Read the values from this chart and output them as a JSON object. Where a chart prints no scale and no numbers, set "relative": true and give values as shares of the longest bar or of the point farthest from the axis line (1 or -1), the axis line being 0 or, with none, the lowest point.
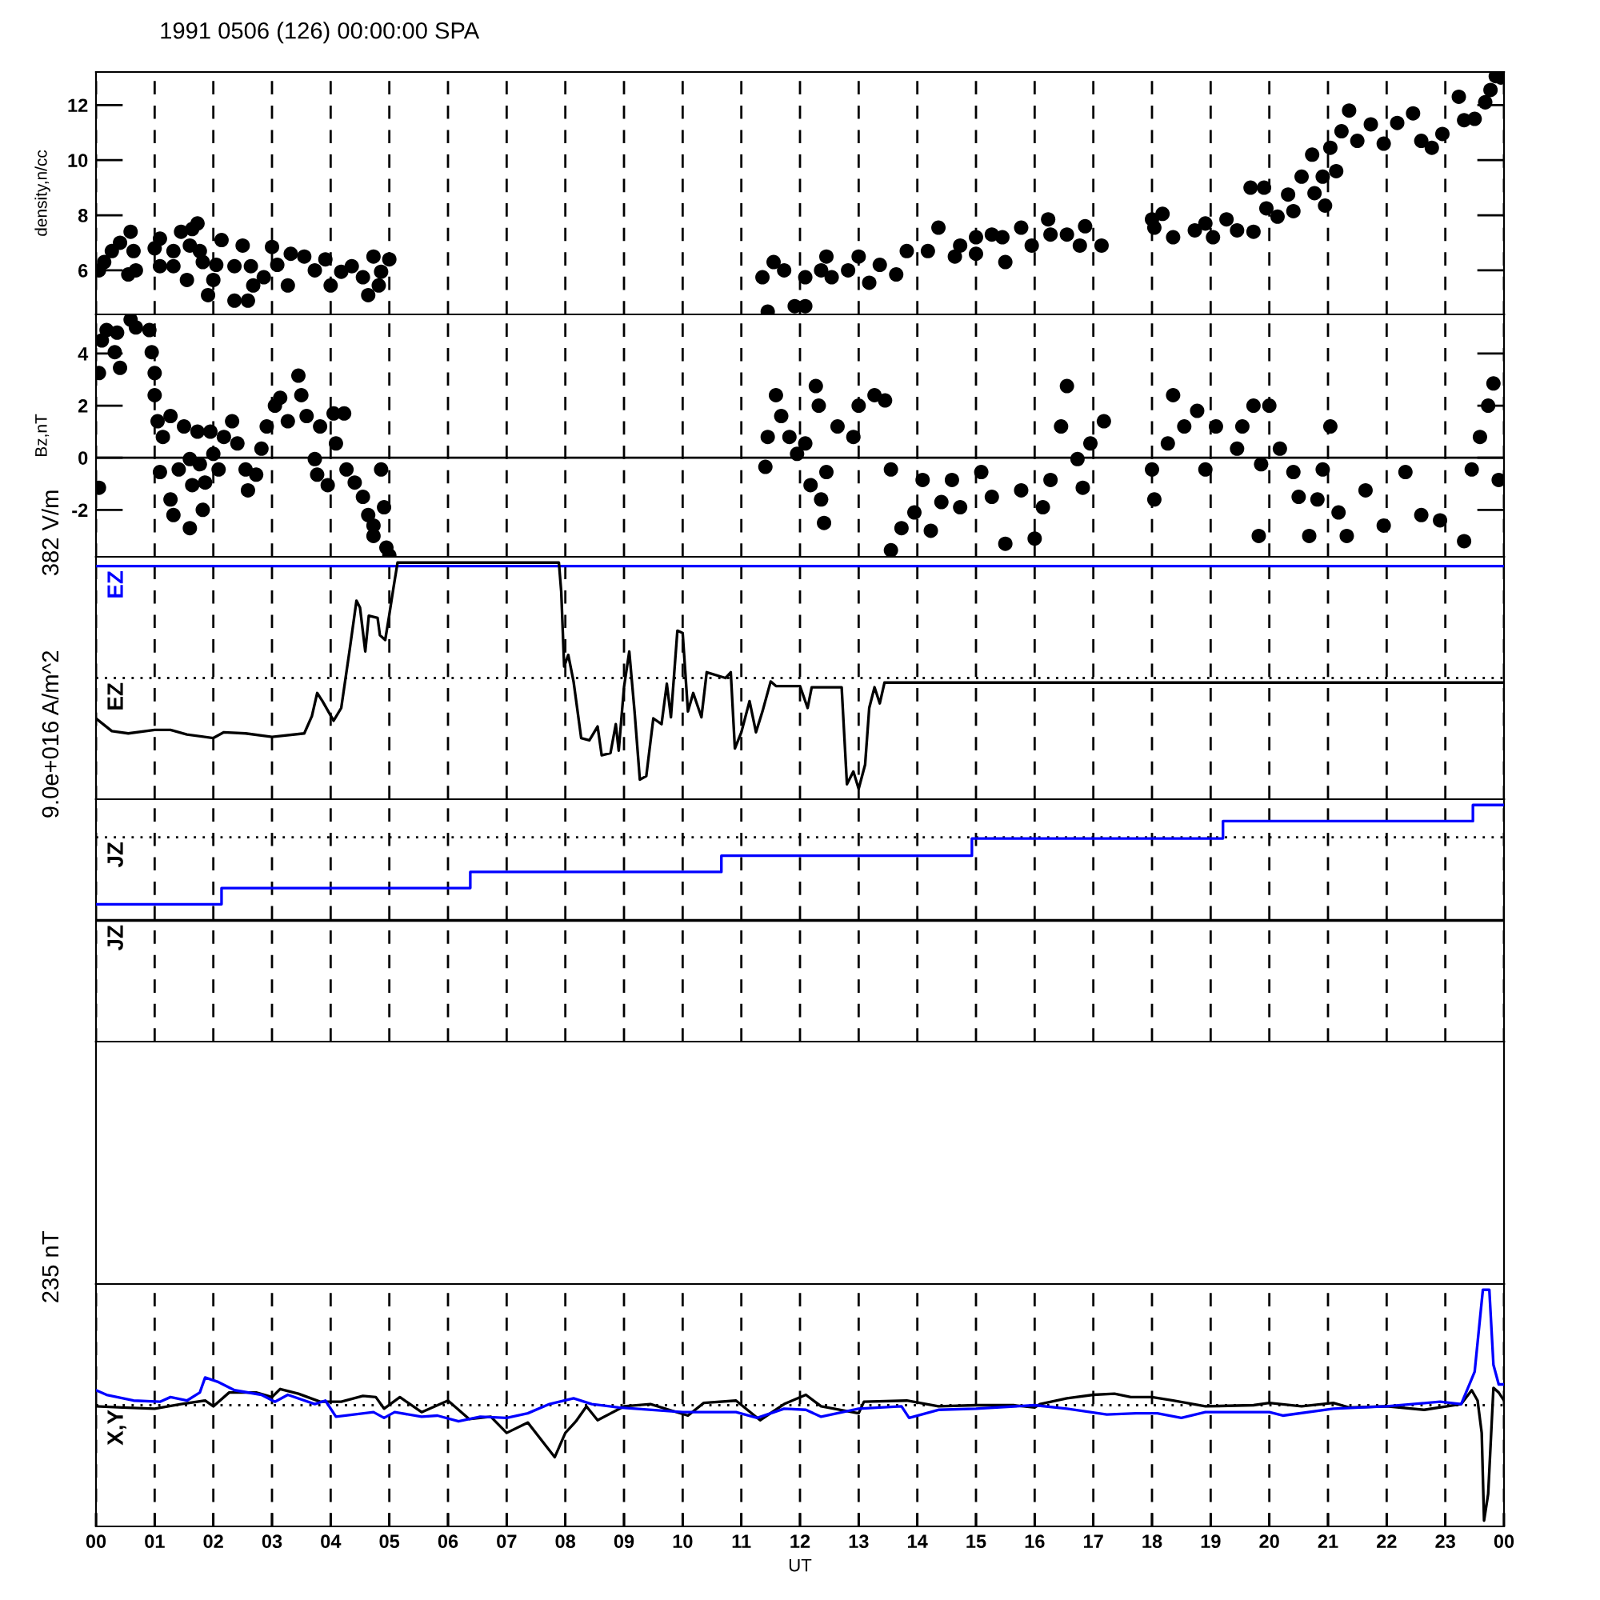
{
  "chart_data": [
    {
      "type": "scatter",
      "title": "1991 0506 (126) 00:00:00 SPA",
      "ylabel": "density,n/cc",
      "marker": "circle",
      "grid": "x",
      "tick_labels": "y",
      "xlim": [
        0,
        24
      ],
      "xticks": [
        {
          "value": 0,
          "label": null
        },
        {
          "value": 1,
          "label": null
        },
        {
          "value": 2,
          "label": null
        },
        {
          "value": 3,
          "label": null
        },
        {
          "value": 4,
          "label": null
        },
        {
          "value": 5,
          "label": null
        },
        {
          "value": 6,
          "label": null
        },
        {
          "value": 7,
          "label": null
        },
        {
          "value": 8,
          "label": null
        },
        {
          "value": 9,
          "label": null
        },
        {
          "value": 10,
          "label": null
        },
        {
          "value": 11,
          "label": null
        },
        {
          "value": 12,
          "label": null
        },
        {
          "value": 13,
          "label": null
        },
        {
          "value": 14,
          "label": null
        },
        {
          "value": 15,
          "label": null
        },
        {
          "value": 16,
          "label": null
        },
        {
          "value": 17,
          "label": null
        },
        {
          "value": 18,
          "label": null
        },
        {
          "value": 19,
          "label": null
        },
        {
          "value": 20,
          "label": null
        },
        {
          "value": 21,
          "label": null
        },
        {
          "value": 22,
          "label": null
        },
        {
          "value": 23,
          "label": null
        },
        {
          "value": 24,
          "label": null
        }
      ],
      "ylim": [
        4.4,
        13.2
      ],
      "yticks": [
        6,
        8,
        10,
        12
      ],
      "series": [
        {
          "color": "#000000",
          "x": [
            0.05,
            0.14,
            0.27,
            0.41,
            0.59,
            0.55,
            0.68,
            0.64,
            1.0,
            1.09,
            1.09,
            1.32,
            1.32,
            1.45,
            1.55,
            1.6,
            1.64,
            1.73,
            1.77,
            1.82,
            1.91,
            2.0,
            2.05,
            2.14,
            2.36,
            2.36,
            2.5,
            2.59,
            2.64,
            2.68,
            2.86,
            3.0,
            3.09,
            3.27,
            3.32,
            3.55,
            3.73,
            3.91,
            4.0,
            4.18,
            4.36,
            4.55,
            4.64,
            4.73,
            4.86,
            4.82,
            5.0,
            11.36,
            11.55,
            11.45,
            11.73,
            11.91,
            12.09,
            12.09,
            12.36,
            12.54,
            12.45,
            12.82,
            13.0,
            13.18,
            13.36,
            13.64,
            13.82,
            14.18,
            14.36,
            14.64,
            14.73,
            15.0,
            15.0,
            15.27,
            15.5,
            15.45,
            15.77,
            15.95,
            16.23,
            16.27,
            16.55,
            16.77,
            16.86,
            17.14,
            18.0,
            18.18,
            18.04,
            18.36,
            18.73,
            18.91,
            19.04,
            19.27,
            19.45,
            19.68,
            19.73,
            19.91,
            19.95,
            20.14,
            20.32,
            20.41,
            20.55,
            20.73,
            20.77,
            20.95,
            20.91,
            21.04,
            21.14,
            21.23,
            21.36,
            21.5,
            21.73,
            21.95,
            22.18,
            22.45,
            22.59,
            22.77,
            22.95,
            23.23,
            23.32,
            23.5,
            23.68,
            23.77,
            23.86,
            23.95
          ],
          "values": [
            6.0,
            6.3,
            6.7,
            7.0,
            7.4,
            5.85,
            6.0,
            6.7,
            6.8,
            7.15,
            6.15,
            6.15,
            6.7,
            7.4,
            5.65,
            6.9,
            7.5,
            7.7,
            6.7,
            6.3,
            5.1,
            5.65,
            6.2,
            7.1,
            4.9,
            6.15,
            6.9,
            4.9,
            6.15,
            5.45,
            5.75,
            6.85,
            6.2,
            5.45,
            6.6,
            6.5,
            6.0,
            6.4,
            5.45,
            5.95,
            6.15,
            5.75,
            5.1,
            6.5,
            5.95,
            5.45,
            6.4,
            5.75,
            6.3,
            4.5,
            6.0,
            4.7,
            5.75,
            4.7,
            6.0,
            5.75,
            6.5,
            6.0,
            6.5,
            5.55,
            6.2,
            5.85,
            6.7,
            6.7,
            7.55,
            6.5,
            6.9,
            6.6,
            7.2,
            7.3,
            6.3,
            7.2,
            7.55,
            6.9,
            7.85,
            7.3,
            7.3,
            6.9,
            7.6,
            6.9,
            7.85,
            8.05,
            7.55,
            7.2,
            7.45,
            7.7,
            7.2,
            7.85,
            7.45,
            9.0,
            7.4,
            9.0,
            8.25,
            7.95,
            8.75,
            8.15,
            9.4,
            10.2,
            8.8,
            8.35,
            9.4,
            10.45,
            9.6,
            11.05,
            11.8,
            10.7,
            11.3,
            10.6,
            11.35,
            11.7,
            10.7,
            10.45,
            10.95,
            12.3,
            11.45,
            11.5,
            12.1,
            12.55,
            13.05,
            13.0
          ]
        }
      ]
    },
    {
      "type": "scatter",
      "ylabel": "Bz,nT",
      "marker": "circle",
      "grid": "x",
      "tick_labels": "y",
      "xlim": [
        0,
        24
      ],
      "xticks": [
        {
          "value": 0,
          "label": null
        },
        {
          "value": 1,
          "label": null
        },
        {
          "value": 2,
          "label": null
        },
        {
          "value": 3,
          "label": null
        },
        {
          "value": 4,
          "label": null
        },
        {
          "value": 5,
          "label": null
        },
        {
          "value": 6,
          "label": null
        },
        {
          "value": 7,
          "label": null
        },
        {
          "value": 8,
          "label": null
        },
        {
          "value": 9,
          "label": null
        },
        {
          "value": 10,
          "label": null
        },
        {
          "value": 11,
          "label": null
        },
        {
          "value": 12,
          "label": null
        },
        {
          "value": 13,
          "label": null
        },
        {
          "value": 14,
          "label": null
        },
        {
          "value": 15,
          "label": null
        },
        {
          "value": 16,
          "label": null
        },
        {
          "value": 17,
          "label": null
        },
        {
          "value": 18,
          "label": null
        },
        {
          "value": 19,
          "label": null
        },
        {
          "value": 20,
          "label": null
        },
        {
          "value": 21,
          "label": null
        },
        {
          "value": 22,
          "label": null
        },
        {
          "value": 23,
          "label": null
        },
        {
          "value": 24,
          "label": null
        }
      ],
      "ylim": [
        -3.8,
        5.5
      ],
      "yticks": [
        -2,
        0,
        2,
        4
      ],
      "ref_lines": [
        {
          "axis": "y",
          "value": 0
        }
      ],
      "series": [
        {
          "color": "#000000",
          "x": [
            0.05,
            0.1,
            0.18,
            0.32,
            0.41,
            0.36,
            0.05,
            0.59,
            0.68,
            0.91,
            0.95,
            1.0,
            1.0,
            1.05,
            1.09,
            1.14,
            1.27,
            1.27,
            1.32,
            1.41,
            1.5,
            1.6,
            1.6,
            1.64,
            1.73,
            1.77,
            1.82,
            1.86,
            1.95,
            2.0,
            2.09,
            2.18,
            2.32,
            2.41,
            2.55,
            2.59,
            2.73,
            2.82,
            2.91,
            3.05,
            3.14,
            3.27,
            3.45,
            3.5,
            3.59,
            3.73,
            3.77,
            3.82,
            3.95,
            4.05,
            4.09,
            4.23,
            4.27,
            4.41,
            4.55,
            4.64,
            4.73,
            4.73,
            4.86,
            4.91,
            4.95,
            5.0,
            11.41,
            11.45,
            11.59,
            11.68,
            11.82,
            11.95,
            12.09,
            12.27,
            12.32,
            12.18,
            12.36,
            12.41,
            12.45,
            12.64,
            12.91,
            13.0,
            13.27,
            13.45,
            13.55,
            13.55,
            13.73,
            13.95,
            14.09,
            14.23,
            14.41,
            14.59,
            14.73,
            15.09,
            15.27,
            15.5,
            15.77,
            16.0,
            16.14,
            16.27,
            16.45,
            16.55,
            16.73,
            16.82,
            16.95,
            17.18,
            18.0,
            18.04,
            18.27,
            18.36,
            18.55,
            18.77,
            18.91,
            19.09,
            19.45,
            19.54,
            19.73,
            19.82,
            19.86,
            20.0,
            20.18,
            20.41,
            20.5,
            20.68,
            20.82,
            20.91,
            21.04,
            21.18,
            21.32,
            21.64,
            21.95,
            22.32,
            22.59,
            22.91,
            23.32,
            23.45,
            23.59,
            23.73,
            23.82,
            23.91
          ],
          "values": [
            3.25,
            4.5,
            4.9,
            4.05,
            3.45,
            4.8,
            -1.15,
            5.3,
            5.0,
            4.9,
            4.05,
            3.25,
            2.4,
            1.4,
            -0.55,
            0.8,
            1.6,
            -1.6,
            -2.2,
            -0.45,
            1.2,
            -2.7,
            -0.05,
            -1.05,
            1.0,
            -0.25,
            -2.0,
            -0.95,
            1.0,
            0.15,
            -0.45,
            0.8,
            1.4,
            0.55,
            -0.45,
            -1.25,
            -0.65,
            0.35,
            1.2,
            2.0,
            2.3,
            1.4,
            3.15,
            2.4,
            1.6,
            -0.05,
            -0.65,
            1.2,
            -1.05,
            1.7,
            0.55,
            1.7,
            -0.45,
            -0.95,
            -1.5,
            -2.2,
            -2.6,
            -3.0,
            -0.45,
            -1.9,
            -3.45,
            -3.75,
            -0.35,
            0.8,
            2.4,
            1.6,
            0.8,
            0.15,
            0.55,
            2.75,
            2.0,
            -1.05,
            -1.6,
            -2.5,
            -0.55,
            1.2,
            0.8,
            2.0,
            2.4,
            2.2,
            -0.45,
            -3.55,
            -2.7,
            -2.1,
            -0.85,
            -2.8,
            -1.7,
            -0.85,
            -1.9,
            -0.55,
            -1.5,
            -3.3,
            -1.25,
            -3.1,
            -1.9,
            -0.85,
            1.2,
            2.75,
            -0.05,
            -1.15,
            0.55,
            1.4,
            -0.45,
            -1.6,
            0.55,
            2.4,
            1.2,
            1.8,
            -0.45,
            1.2,
            0.35,
            1.2,
            2.0,
            -3.0,
            -0.25,
            2.0,
            0.35,
            -0.55,
            -1.5,
            -3.0,
            -1.6,
            -0.45,
            1.2,
            -2.1,
            -3.0,
            -1.25,
            -2.6,
            -0.55,
            -2.2,
            -2.4,
            -3.2,
            -0.45,
            0.8,
            2.0,
            2.85,
            -0.85
          ]
        }
      ]
    },
    {
      "type": "line",
      "ylabel": "382 V/m",
      "relative": true,
      "grid": "x",
      "tick_labels": false,
      "xlim": [
        0,
        24
      ],
      "xticks": [
        {
          "value": 0,
          "label": null
        },
        {
          "value": 1,
          "label": null
        },
        {
          "value": 2,
          "label": null
        },
        {
          "value": 3,
          "label": null
        },
        {
          "value": 4,
          "label": null
        },
        {
          "value": 5,
          "label": null
        },
        {
          "value": 6,
          "label": null
        },
        {
          "value": 7,
          "label": null
        },
        {
          "value": 8,
          "label": null
        },
        {
          "value": 9,
          "label": null
        },
        {
          "value": 10,
          "label": null
        },
        {
          "value": 11,
          "label": null
        },
        {
          "value": 12,
          "label": null
        },
        {
          "value": 13,
          "label": null
        },
        {
          "value": 14,
          "label": null
        },
        {
          "value": 15,
          "label": null
        },
        {
          "value": 16,
          "label": null
        },
        {
          "value": 17,
          "label": null
        },
        {
          "value": 18,
          "label": null
        },
        {
          "value": 19,
          "label": null
        },
        {
          "value": 20,
          "label": null
        },
        {
          "value": 21,
          "label": null
        },
        {
          "value": 22,
          "label": null
        },
        {
          "value": 23,
          "label": null
        },
        {
          "value": 24,
          "label": null
        }
      ],
      "ref_lines": [
        {
          "axis": "y",
          "value": 0,
          "label": "EZ",
          "line_style": "dotted"
        }
      ],
      "series": [
        {
          "name": "EZ",
          "color": "#0000ff",
          "x": [
            0,
            24
          ],
          "values": [
            0.97,
            0.97
          ]
        },
        {
          "color": "#000000",
          "x": [
            0,
            0.27,
            0.55,
            1.0,
            1.27,
            1.55,
            2.0,
            2.18,
            2.55,
            3.0,
            3.55,
            3.68,
            3.77,
            3.86,
            4.05,
            4.18,
            4.32,
            4.44,
            4.5,
            4.59,
            4.65,
            4.8,
            4.84,
            4.93,
            5.0,
            5.07,
            5.14,
            7.89,
            7.93,
            7.98,
            8.05,
            8.14,
            8.27,
            8.41,
            8.55,
            8.62,
            8.77,
            8.86,
            8.91,
            9.0,
            9.09,
            9.18,
            9.27,
            9.38,
            9.5,
            9.64,
            9.73,
            9.8,
            9.91,
            10.0,
            10.09,
            10.18,
            10.32,
            10.41,
            10.73,
            10.82,
            10.89,
            11.0,
            11.14,
            11.25,
            11.36,
            11.5,
            11.59,
            12.0,
            12.13,
            12.2,
            12.71,
            12.8,
            12.91,
            13.0,
            13.11,
            13.18,
            13.27,
            13.36,
            13.44,
            13.91,
            24
          ],
          "values": [
            -0.35,
            -0.46,
            -0.48,
            -0.45,
            -0.45,
            -0.49,
            -0.52,
            -0.47,
            -0.48,
            -0.51,
            -0.48,
            -0.33,
            -0.13,
            -0.2,
            -0.37,
            -0.26,
            0.23,
            0.67,
            0.61,
            0.23,
            0.54,
            0.52,
            0.37,
            0.33,
            0.55,
            0.78,
            1.0,
            1.0,
            0.75,
            0.1,
            0.2,
            -0.03,
            -0.52,
            -0.54,
            -0.42,
            -0.67,
            -0.65,
            -0.4,
            -0.63,
            -0.08,
            0.23,
            -0.29,
            -0.88,
            -0.85,
            -0.35,
            -0.4,
            -0.05,
            -0.34,
            0.41,
            0.39,
            -0.29,
            -0.13,
            -0.34,
            0.05,
            0.0,
            0.05,
            -0.61,
            -0.47,
            -0.2,
            -0.47,
            -0.29,
            -0.03,
            -0.07,
            -0.07,
            -0.26,
            -0.08,
            -0.08,
            -0.92,
            -0.81,
            -0.96,
            -0.75,
            -0.26,
            -0.08,
            -0.22,
            -0.04,
            -0.04,
            -0.04
          ]
        }
      ]
    },
    {
      "type": "step",
      "ylabel": "9.0e+016 A/m^2",
      "relative": true,
      "grid": "x",
      "tick_labels": false,
      "xlim": [
        0,
        24
      ],
      "xticks": [
        {
          "value": 0,
          "label": null
        },
        {
          "value": 1,
          "label": null
        },
        {
          "value": 2,
          "label": null
        },
        {
          "value": 3,
          "label": null
        },
        {
          "value": 4,
          "label": null
        },
        {
          "value": 5,
          "label": null
        },
        {
          "value": 6,
          "label": null
        },
        {
          "value": 7,
          "label": null
        },
        {
          "value": 8,
          "label": null
        },
        {
          "value": 9,
          "label": null
        },
        {
          "value": 10,
          "label": null
        },
        {
          "value": 11,
          "label": null
        },
        {
          "value": 12,
          "label": null
        },
        {
          "value": 13,
          "label": null
        },
        {
          "value": 14,
          "label": null
        },
        {
          "value": 15,
          "label": null
        },
        {
          "value": 16,
          "label": null
        },
        {
          "value": 17,
          "label": null
        },
        {
          "value": 18,
          "label": null
        },
        {
          "value": 19,
          "label": null
        },
        {
          "value": 20,
          "label": null
        },
        {
          "value": 21,
          "label": null
        },
        {
          "value": 22,
          "label": null
        },
        {
          "value": 23,
          "label": null
        },
        {
          "value": 24,
          "label": null
        }
      ],
      "ref_lines": [
        {
          "axis": "y",
          "value": 0.72,
          "label": "JZ",
          "line_style": "dotted"
        }
      ],
      "series": [
        {
          "color": "#0000ff",
          "x": [
            0,
            2.14,
            6.38,
            10.66,
            14.93,
            19.21,
            23.47,
            24
          ],
          "values": [
            0.14,
            0.28,
            0.42,
            0.56,
            0.71,
            0.86,
            1.0,
            1.0
          ]
        },
        {
          "name": "JZ",
          "color": "#000000",
          "x": [
            0,
            24
          ],
          "values": [
            0,
            0
          ]
        }
      ]
    },
    {
      "type": "other"
    },
    {
      "type": "line",
      "ylabel": "235 nT",
      "xlabel": "UT",
      "relative": true,
      "grid": "x",
      "tick_labels": "x",
      "xlim": [
        0,
        24
      ],
      "xticks": [
        {
          "value": 0,
          "label": "00"
        },
        {
          "value": 1,
          "label": "01"
        },
        {
          "value": 2,
          "label": "02"
        },
        {
          "value": 3,
          "label": "03"
        },
        {
          "value": 4,
          "label": "04"
        },
        {
          "value": 5,
          "label": "05"
        },
        {
          "value": 6,
          "label": "06"
        },
        {
          "value": 7,
          "label": "07"
        },
        {
          "value": 8,
          "label": "08"
        },
        {
          "value": 9,
          "label": "09"
        },
        {
          "value": 10,
          "label": "10"
        },
        {
          "value": 11,
          "label": "11"
        },
        {
          "value": 12,
          "label": "12"
        },
        {
          "value": 13,
          "label": "13"
        },
        {
          "value": 14,
          "label": "14"
        },
        {
          "value": 15,
          "label": "15"
        },
        {
          "value": 16,
          "label": "16"
        },
        {
          "value": 17,
          "label": "17"
        },
        {
          "value": 18,
          "label": "18"
        },
        {
          "value": 19,
          "label": "19"
        },
        {
          "value": 20,
          "label": "20"
        },
        {
          "value": 21,
          "label": "21"
        },
        {
          "value": 22,
          "label": "22"
        },
        {
          "value": 23,
          "label": "23"
        },
        {
          "value": 24,
          "label": "00"
        }
      ],
      "ref_lines": [
        {
          "axis": "y",
          "value": 0,
          "label": "X,Y",
          "line_style": "dotted"
        }
      ],
      "series": [
        {
          "color": "#000000",
          "x": [
            0,
            0.45,
            1.0,
            1.45,
            1.86,
            2.0,
            2.27,
            2.73,
            3.0,
            3.14,
            3.45,
            3.82,
            4.18,
            4.55,
            4.77,
            4.91,
            5.18,
            5.55,
            6.0,
            6.36,
            6.73,
            7.0,
            7.36,
            7.82,
            8.0,
            8.18,
            8.36,
            8.55,
            9.0,
            9.45,
            10.09,
            10.36,
            10.91,
            11.32,
            11.73,
            12.1,
            12.36,
            13.0,
            13.09,
            13.82,
            14.36,
            15.0,
            15.64,
            16.0,
            16.09,
            16.55,
            17.0,
            17.36,
            17.64,
            18.0,
            18.36,
            18.91,
            19.73,
            20.0,
            20.55,
            21.09,
            21.36,
            22.0,
            22.64,
            23.27,
            23.45,
            23.55,
            23.62,
            23.66,
            23.73,
            23.82,
            23.91,
            24.0
          ],
          "values": [
            -0.01,
            -0.02,
            -0.03,
            0.01,
            0.04,
            -0.01,
            0.11,
            0.11,
            0.07,
            0.14,
            0.1,
            0.03,
            0.03,
            0.08,
            0.07,
            -0.03,
            0.07,
            -0.06,
            0.04,
            -0.12,
            -0.1,
            -0.24,
            -0.15,
            -0.45,
            -0.24,
            -0.14,
            -0.01,
            -0.13,
            -0.01,
            0.01,
            -0.09,
            0.02,
            0.04,
            -0.13,
            0.01,
            0.09,
            -0.01,
            -0.07,
            0.03,
            0.04,
            -0.01,
            0.0,
            0.0,
            -0.02,
            0.01,
            0.06,
            0.09,
            0.1,
            0.07,
            0.07,
            0.04,
            -0.01,
            0.0,
            0.02,
            -0.01,
            0.02,
            -0.02,
            -0.01,
            -0.04,
            0.01,
            0.13,
            0.04,
            -0.24,
            -1.0,
            -0.77,
            0.15,
            0.11,
            0.04
          ]
        },
        {
          "color": "#0000ff",
          "x": [
            0,
            0.18,
            0.64,
            1.09,
            1.27,
            1.55,
            1.77,
            1.86,
            2.09,
            2.36,
            2.82,
            3.05,
            3.27,
            3.73,
            3.91,
            4.09,
            4.73,
            4.91,
            5.09,
            5.55,
            5.82,
            6.18,
            6.55,
            7.0,
            7.36,
            7.73,
            8.14,
            8.45,
            8.91,
            10.0,
            10.91,
            11.27,
            11.73,
            12.1,
            12.36,
            13.0,
            13.73,
            13.86,
            14.36,
            15.0,
            16.0,
            16.55,
            17.23,
            17.73,
            18.09,
            18.5,
            18.91,
            20.0,
            20.23,
            21.09,
            22.0,
            22.91,
            23.27,
            23.41,
            23.5,
            23.64,
            23.75,
            23.82,
            23.91,
            24.0
          ],
          "values": [
            0.13,
            0.09,
            0.04,
            0.03,
            0.07,
            0.04,
            0.11,
            0.24,
            0.2,
            0.13,
            0.09,
            0.03,
            0.09,
            0.01,
            0.04,
            -0.1,
            -0.06,
            -0.11,
            -0.06,
            -0.1,
            -0.09,
            -0.14,
            -0.1,
            -0.11,
            -0.07,
            0.01,
            0.06,
            0.01,
            -0.02,
            -0.06,
            -0.06,
            -0.11,
            -0.03,
            -0.04,
            -0.1,
            -0.03,
            -0.01,
            -0.11,
            -0.04,
            -0.03,
            0.0,
            -0.03,
            -0.08,
            -0.07,
            -0.07,
            -0.11,
            -0.06,
            -0.06,
            -0.09,
            -0.03,
            -0.01,
            0.03,
            0.01,
            0.18,
            0.29,
            1.0,
            1.0,
            0.35,
            0.18,
            0.18
          ]
        }
      ]
    }
  ]
}
